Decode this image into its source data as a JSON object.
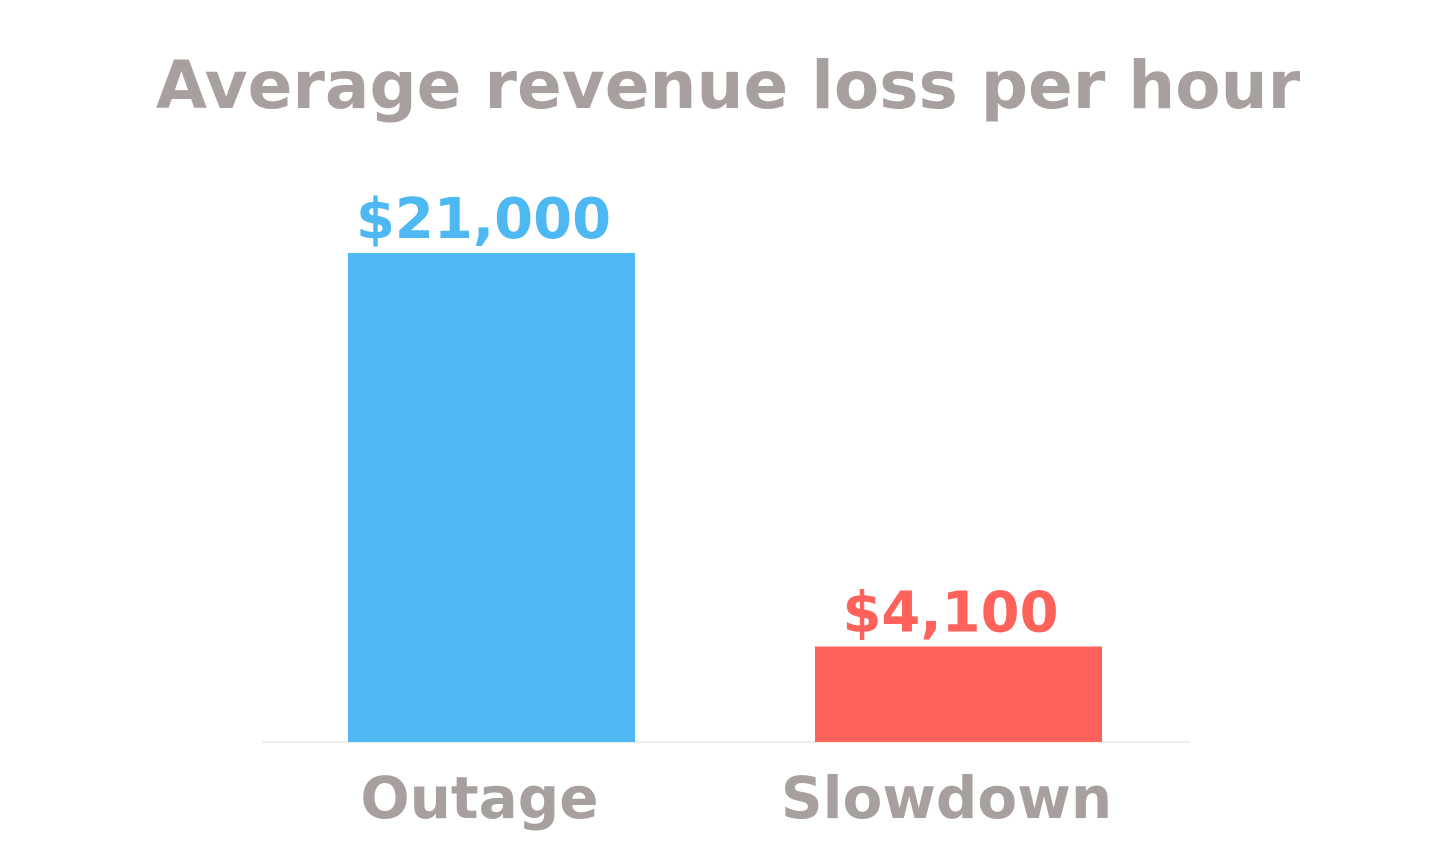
{
  "chart_data": {
    "type": "bar",
    "title": "Average revenue loss per hour",
    "xlabel": "",
    "ylabel": "",
    "categories": [
      "Outage",
      "Slowdown"
    ],
    "values": [
      21000,
      4100
    ],
    "value_labels": [
      "$21,000",
      "$4,100"
    ],
    "colors": [
      "#4db8f2",
      "#ff615b"
    ],
    "ylim": [
      0,
      21000
    ],
    "grid": false,
    "legend": "none"
  }
}
